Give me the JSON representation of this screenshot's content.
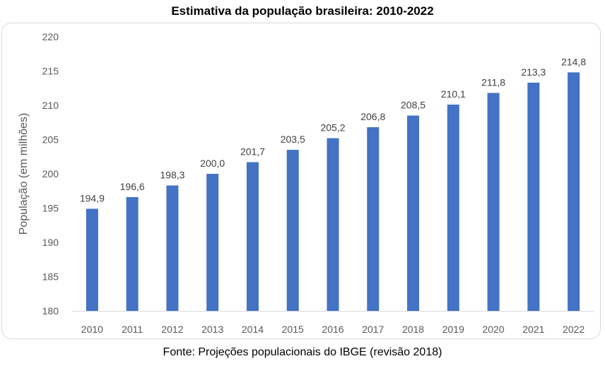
{
  "source_note": "Fonte: Projeções populacionais do IBGE (revisão 2018)",
  "chart_data": {
    "type": "bar",
    "title": "Estimativa da população brasileira: 2010-2022",
    "xlabel": "",
    "ylabel": "População (em milhões)",
    "ylim": [
      180,
      220
    ],
    "yticks": [
      180,
      185,
      190,
      195,
      200,
      205,
      210,
      215,
      220
    ],
    "ytick_labels": [
      "180",
      "185",
      "190",
      "195",
      "200",
      "205",
      "210",
      "215",
      "220"
    ],
    "grid": false,
    "bar_color": "#4472c4",
    "categories": [
      "2010",
      "2011",
      "2012",
      "2013",
      "2014",
      "2015",
      "2016",
      "2017",
      "2018",
      "2019",
      "2020",
      "2021",
      "2022"
    ],
    "values": [
      194.9,
      196.6,
      198.3,
      200.0,
      201.7,
      203.5,
      205.2,
      206.8,
      208.5,
      210.1,
      211.8,
      213.3,
      214.8
    ],
    "data_labels": [
      "194,9",
      "196,6",
      "198,3",
      "200,0",
      "201,7",
      "203,5",
      "205,2",
      "206,8",
      "208,5",
      "210,1",
      "211,8",
      "213,3",
      "214,8"
    ]
  }
}
